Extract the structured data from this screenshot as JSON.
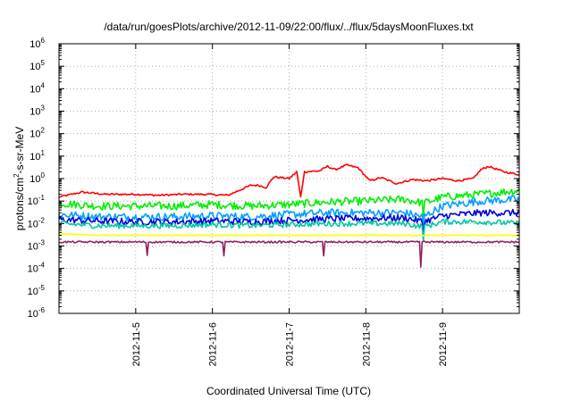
{
  "chart_data": {
    "type": "line",
    "title": "/data/run/goesPlots/archive/2012-11-09/22:00/flux/../flux/5daysMoonFluxes.txt",
    "xlabel": "Coordinated Universal Time (UTC)",
    "ylabel": "protons/cm²-s-sr-MeV",
    "ylabel_parts": {
      "base": "protons/cm",
      "sup": "2",
      "rest": "-s-sr-MeV"
    },
    "yscale": "log",
    "ylim": [
      1e-06,
      1000000.0
    ],
    "xlim": [
      4.0,
      10.0
    ],
    "x_unit": "days of November 2012",
    "y_ticks": [
      {
        "exp": -6,
        "label": "10",
        "sup": "-6"
      },
      {
        "exp": -5,
        "label": "10",
        "sup": "-5"
      },
      {
        "exp": -4,
        "label": "10",
        "sup": "-4"
      },
      {
        "exp": -3,
        "label": "10",
        "sup": "-3"
      },
      {
        "exp": -2,
        "label": "10",
        "sup": "-2"
      },
      {
        "exp": -1,
        "label": "10",
        "sup": "-1"
      },
      {
        "exp": 0,
        "label": "10",
        "sup": "0"
      },
      {
        "exp": 1,
        "label": "10",
        "sup": "1"
      },
      {
        "exp": 2,
        "label": "10",
        "sup": "2"
      },
      {
        "exp": 3,
        "label": "10",
        "sup": "3"
      },
      {
        "exp": 4,
        "label": "10",
        "sup": "4"
      },
      {
        "exp": 5,
        "label": "10",
        "sup": "5"
      },
      {
        "exp": 6,
        "label": "10",
        "sup": "6"
      }
    ],
    "x_ticks": [
      {
        "x": 5,
        "label": "2012-11-5"
      },
      {
        "x": 6,
        "label": "2012-11-6"
      },
      {
        "x": 7,
        "label": "2012-11-7"
      },
      {
        "x": 8,
        "label": "2012-11-8"
      },
      {
        "x": 9,
        "label": "2012-11-9"
      }
    ],
    "grid": true,
    "legend": "none",
    "series": [
      {
        "color": "#ff0000",
        "x": [
          4.0,
          4.3,
          4.6,
          5.0,
          5.3,
          5.6,
          5.9,
          6.2,
          6.5,
          6.6,
          6.7,
          6.8,
          7.0,
          7.1,
          7.15,
          7.2,
          7.4,
          7.5,
          7.6,
          7.75,
          7.9,
          8.05,
          8.2,
          8.4,
          8.6,
          8.8,
          9.0,
          9.2,
          9.4,
          9.5,
          9.6,
          9.8,
          10.0
        ],
        "y": [
          0.15,
          0.25,
          0.2,
          0.2,
          0.18,
          0.2,
          0.2,
          0.18,
          0.5,
          0.5,
          0.4,
          1.2,
          1.0,
          2.0,
          0.15,
          2.0,
          2.2,
          3.5,
          2.5,
          4.0,
          3.0,
          0.8,
          1.1,
          0.6,
          0.9,
          0.8,
          1.0,
          0.8,
          1.0,
          2.5,
          3.5,
          2.0,
          1.5
        ]
      },
      {
        "color": "#00ee00",
        "x": [
          4.0,
          4.5,
          5.0,
          5.5,
          6.0,
          6.5,
          7.0,
          7.5,
          8.0,
          8.5,
          8.75,
          9.0,
          9.5,
          10.0
        ],
        "y": [
          0.08,
          0.06,
          0.06,
          0.06,
          0.07,
          0.06,
          0.07,
          0.09,
          0.1,
          0.12,
          0.08,
          0.15,
          0.2,
          0.3
        ]
      },
      {
        "color": "#00a0ff",
        "x": [
          4.0,
          4.5,
          5.0,
          5.5,
          6.0,
          6.5,
          7.0,
          7.5,
          8.0,
          8.5,
          8.75,
          9.0,
          9.5,
          10.0
        ],
        "y": [
          0.025,
          0.02,
          0.02,
          0.02,
          0.022,
          0.02,
          0.025,
          0.03,
          0.03,
          0.03,
          0.02,
          0.06,
          0.1,
          0.12
        ]
      },
      {
        "color": "#0000dd",
        "x": [
          4.0,
          4.5,
          5.0,
          5.5,
          6.0,
          6.5,
          7.0,
          7.5,
          8.0,
          8.5,
          8.75,
          9.0,
          9.5,
          10.0
        ],
        "y": [
          0.015,
          0.013,
          0.012,
          0.012,
          0.013,
          0.012,
          0.014,
          0.016,
          0.017,
          0.018,
          0.012,
          0.022,
          0.03,
          0.03
        ]
      },
      {
        "color": "#00c8a0",
        "x": [
          4.0,
          4.5,
          5.0,
          5.5,
          6.0,
          6.5,
          7.0,
          7.5,
          8.0,
          8.5,
          8.75,
          9.0,
          9.5,
          10.0
        ],
        "y": [
          0.01,
          0.008,
          0.008,
          0.008,
          0.009,
          0.008,
          0.009,
          0.01,
          0.01,
          0.01,
          0.007,
          0.012,
          0.012,
          0.01
        ]
      },
      {
        "color": "#ffff00",
        "x": [
          4.0,
          4.5,
          5.0,
          5.5,
          6.0,
          6.5,
          7.0,
          7.5,
          8.0,
          8.5,
          9.0,
          9.5,
          10.0
        ],
        "y": [
          0.0035,
          0.003,
          0.003,
          0.003,
          0.003,
          0.003,
          0.003,
          0.003,
          0.003,
          0.003,
          0.003,
          0.003,
          0.003
        ]
      },
      {
        "color": "#902060",
        "x": [
          4.0,
          4.5,
          5.0,
          5.15,
          5.3,
          6.0,
          6.15,
          6.3,
          6.45,
          7.0,
          7.4,
          7.55,
          7.7,
          8.0,
          8.5,
          8.72,
          8.9,
          9.5,
          10.0
        ],
        "y": [
          0.0015,
          0.0015,
          0.0015,
          0.0015,
          0.0015,
          0.0015,
          0.0015,
          0.0015,
          0.0015,
          0.0015,
          0.0015,
          0.0015,
          0.0015,
          0.0015,
          0.0015,
          0.0015,
          0.0015,
          0.0015,
          0.0015
        ]
      }
    ]
  }
}
